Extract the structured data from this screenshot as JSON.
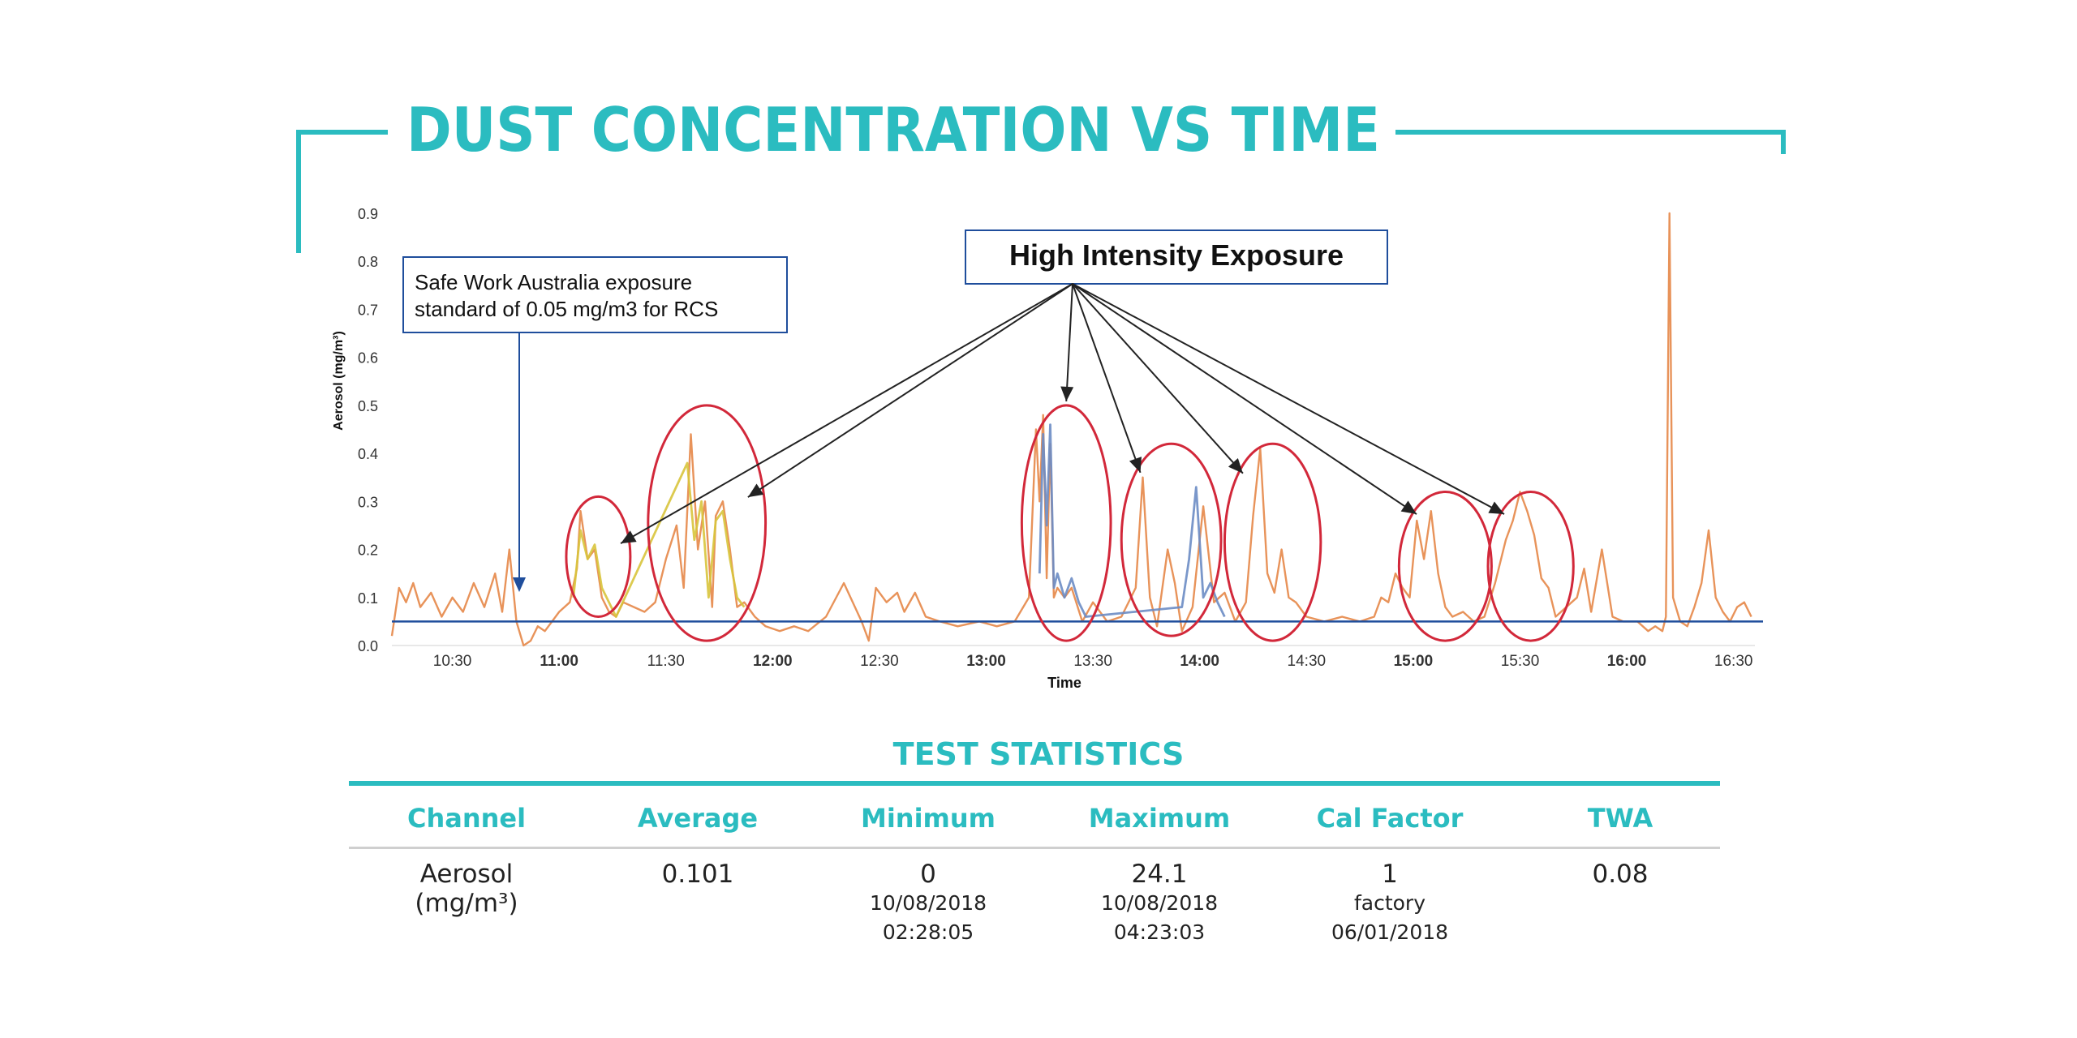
{
  "header": {
    "title": "DUST CONCENTRATION VS TIME",
    "accent_color": "#2bbcc0"
  },
  "chart_data": {
    "type": "line",
    "ylabel": "Aerosol (mg/m³)",
    "xlabel": "Time",
    "ylim": [
      0.0,
      0.9
    ],
    "xlim": [
      "10:13",
      "16:36"
    ],
    "y_ticks": [
      "0.0",
      "0.1",
      "0.2",
      "0.3",
      "0.4",
      "0.5",
      "0.6",
      "0.7",
      "0.8",
      "0.9"
    ],
    "x_ticks": [
      {
        "label": "10:30",
        "bold": false
      },
      {
        "label": "11:00",
        "bold": true
      },
      {
        "label": "11:30",
        "bold": false
      },
      {
        "label": "12:00",
        "bold": true
      },
      {
        "label": "12:30",
        "bold": false
      },
      {
        "label": "13:00",
        "bold": true
      },
      {
        "label": "13:30",
        "bold": false
      },
      {
        "label": "14:00",
        "bold": true
      },
      {
        "label": "14:30",
        "bold": false
      },
      {
        "label": "15:00",
        "bold": true
      },
      {
        "label": "15:30",
        "bold": false
      },
      {
        "label": "16:00",
        "bold": true
      },
      {
        "label": "16:30",
        "bold": false
      }
    ],
    "reference_line": {
      "value": 0.05,
      "color": "#1f4e9c"
    },
    "series": [
      {
        "color": "#e8935a",
        "x": [
          "10:13",
          "10:15",
          "10:17",
          "10:19",
          "10:21",
          "10:24",
          "10:27",
          "10:30",
          "10:33",
          "10:36",
          "10:39",
          "10:42",
          "10:44",
          "10:46",
          "10:48",
          "10:50",
          "10:52",
          "10:54",
          "10:56",
          "10:58",
          "11:00",
          "11:03",
          "11:05",
          "11:06",
          "11:08",
          "11:10",
          "11:12",
          "11:14",
          "11:16",
          "11:18",
          "11:21",
          "11:24",
          "11:27",
          "11:30",
          "11:33",
          "11:35",
          "11:37",
          "11:39",
          "11:41",
          "11:43",
          "11:44",
          "11:46",
          "11:48",
          "11:50",
          "11:52",
          "11:55",
          "11:58",
          "12:02",
          "12:06",
          "12:10",
          "12:15",
          "12:20",
          "12:25",
          "12:27",
          "12:29",
          "12:32",
          "12:35",
          "12:37",
          "12:40",
          "12:43",
          "12:47",
          "12:52",
          "12:58",
          "13:03",
          "13:08",
          "13:12",
          "13:14",
          "13:15",
          "13:16",
          "13:17",
          "13:18",
          "13:19",
          "13:20",
          "13:22",
          "13:24",
          "13:27",
          "13:30",
          "13:34",
          "13:38",
          "13:42",
          "13:44",
          "13:46",
          "13:48",
          "13:51",
          "13:53",
          "13:55",
          "13:58",
          "14:01",
          "14:04",
          "14:07",
          "14:10",
          "14:13",
          "14:15",
          "14:17",
          "14:19",
          "14:21",
          "14:23",
          "14:25",
          "14:27",
          "14:30",
          "14:35",
          "14:40",
          "14:45",
          "14:49",
          "14:51",
          "14:53",
          "14:55",
          "14:57",
          "14:59",
          "15:01",
          "15:03",
          "15:05",
          "15:07",
          "15:09",
          "15:11",
          "15:14",
          "15:17",
          "15:20",
          "15:23",
          "15:26",
          "15:28",
          "15:30",
          "15:32",
          "15:34",
          "15:36",
          "15:38",
          "15:40",
          "15:43",
          "15:46",
          "15:48",
          "15:50",
          "15:53",
          "15:56",
          "15:59",
          "16:03",
          "16:06",
          "16:08",
          "16:10",
          "16:11",
          "16:12",
          "16:13",
          "16:15",
          "16:17",
          "16:19",
          "16:21",
          "16:23",
          "16:25",
          "16:27",
          "16:29",
          "16:31",
          "16:33",
          "16:35"
        ],
        "y": [
          0.02,
          0.12,
          0.09,
          0.13,
          0.08,
          0.11,
          0.06,
          0.1,
          0.07,
          0.13,
          0.08,
          0.15,
          0.07,
          0.2,
          0.05,
          0.0,
          0.01,
          0.04,
          0.03,
          0.05,
          0.07,
          0.09,
          0.16,
          0.28,
          0.18,
          0.2,
          0.1,
          0.07,
          0.06,
          0.09,
          0.08,
          0.07,
          0.09,
          0.18,
          0.25,
          0.12,
          0.44,
          0.2,
          0.3,
          0.08,
          0.27,
          0.3,
          0.2,
          0.08,
          0.09,
          0.06,
          0.04,
          0.03,
          0.04,
          0.03,
          0.06,
          0.13,
          0.05,
          0.01,
          0.12,
          0.09,
          0.11,
          0.07,
          0.11,
          0.06,
          0.05,
          0.04,
          0.05,
          0.04,
          0.05,
          0.1,
          0.45,
          0.3,
          0.48,
          0.14,
          0.42,
          0.1,
          0.12,
          0.1,
          0.12,
          0.05,
          0.09,
          0.05,
          0.06,
          0.12,
          0.35,
          0.1,
          0.04,
          0.2,
          0.13,
          0.03,
          0.08,
          0.29,
          0.09,
          0.11,
          0.05,
          0.09,
          0.27,
          0.41,
          0.15,
          0.11,
          0.2,
          0.1,
          0.09,
          0.06,
          0.05,
          0.06,
          0.05,
          0.06,
          0.1,
          0.09,
          0.15,
          0.12,
          0.1,
          0.26,
          0.18,
          0.28,
          0.15,
          0.08,
          0.06,
          0.07,
          0.05,
          0.06,
          0.13,
          0.22,
          0.26,
          0.32,
          0.28,
          0.23,
          0.14,
          0.12,
          0.06,
          0.08,
          0.1,
          0.16,
          0.07,
          0.2,
          0.06,
          0.05,
          0.05,
          0.03,
          0.04,
          0.03,
          0.06,
          0.9,
          0.1,
          0.05,
          0.04,
          0.08,
          0.13,
          0.24,
          0.1,
          0.07,
          0.05,
          0.08,
          0.09,
          0.06
        ]
      },
      {
        "color": "#d8c43c",
        "x": [
          "11:04",
          "11:06",
          "11:08",
          "11:10",
          "11:12",
          "11:14",
          "11:16",
          "11:36",
          "11:38",
          "11:40",
          "11:42",
          "11:44",
          "11:46",
          "11:48",
          "11:50",
          "11:52"
        ],
        "y": [
          0.1,
          0.24,
          0.18,
          0.21,
          0.12,
          0.09,
          0.06,
          0.38,
          0.22,
          0.3,
          0.1,
          0.26,
          0.28,
          0.18,
          0.1,
          0.08
        ]
      },
      {
        "color": "#6b8cc4",
        "x": [
          "13:15",
          "13:16",
          "13:17",
          "13:18",
          "13:19",
          "13:20",
          "13:22",
          "13:24",
          "13:26",
          "13:28",
          "13:55",
          "13:57",
          "13:59",
          "14:01",
          "14:03",
          "14:05",
          "14:07"
        ],
        "y": [
          0.15,
          0.44,
          0.25,
          0.46,
          0.12,
          0.15,
          0.1,
          0.14,
          0.09,
          0.06,
          0.08,
          0.18,
          0.33,
          0.1,
          0.13,
          0.09,
          0.06
        ]
      }
    ],
    "annotations": {
      "reference_box_lines": [
        "Safe Work Australia exposure",
        "standard of 0.05 mg/m3 for RCS"
      ],
      "highlight_label": "High Intensity Exposure",
      "highlight_circle_color": "#d2283a",
      "highlight_windows": [
        {
          "x_from": "11:02",
          "x_to": "11:20",
          "y_from": 0.06,
          "y_to": 0.31
        },
        {
          "x_from": "11:25",
          "x_to": "11:58",
          "y_from": 0.01,
          "y_to": 0.5
        },
        {
          "x_from": "13:10",
          "x_to": "13:35",
          "y_from": 0.01,
          "y_to": 0.5
        },
        {
          "x_from": "13:38",
          "x_to": "14:06",
          "y_from": 0.02,
          "y_to": 0.42
        },
        {
          "x_from": "14:07",
          "x_to": "14:34",
          "y_from": 0.01,
          "y_to": 0.42
        },
        {
          "x_from": "14:56",
          "x_to": "15:22",
          "y_from": 0.01,
          "y_to": 0.32
        },
        {
          "x_from": "15:21",
          "x_to": "15:45",
          "y_from": 0.01,
          "y_to": 0.32
        }
      ]
    }
  },
  "stats": {
    "title": "TEST STATISTICS",
    "headers": [
      "Channel",
      "Average",
      "Minimum",
      "Maximum",
      "Cal Factor",
      "TWA"
    ],
    "row": [
      {
        "main": "Aerosol",
        "sub": [
          "(mg/m³)"
        ],
        "sub_large": true
      },
      {
        "main": "0.101",
        "sub": []
      },
      {
        "main": "0",
        "sub": [
          "10/08/2018",
          "02:28:05"
        ]
      },
      {
        "main": "24.1",
        "sub": [
          "10/08/2018",
          "04:23:03"
        ]
      },
      {
        "main": "1",
        "sub": [
          "factory",
          "06/01/2018"
        ]
      },
      {
        "main": "0.08",
        "sub": []
      }
    ]
  }
}
